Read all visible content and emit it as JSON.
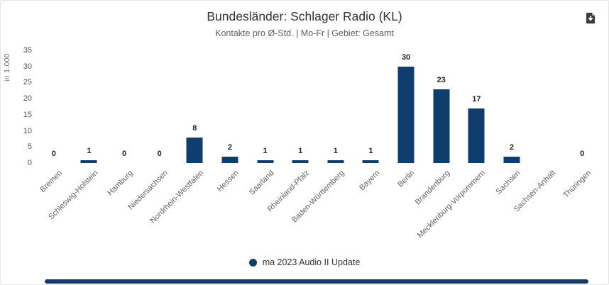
{
  "header": {
    "title": "Bundesländer: Schlager Radio (KL)",
    "subtitle": "Kontakte pro Ø-Std. | Mo-Fr | Gebiet: Gesamt"
  },
  "toolbar": {
    "export_icon": "download-document"
  },
  "chart_data": {
    "type": "bar",
    "title": "Bundesländer: Schlager Radio (KL)",
    "subtitle": "Kontakte pro Ø-Std. | Mo-Fr | Gebiet: Gesamt",
    "categories": [
      "Bremen",
      "Schleswig-Holstein",
      "Hamburg",
      "Niedersachsen",
      "Nordrhein-Westfalen",
      "Hessen",
      "Saarland",
      "Rheinland-Pfalz",
      "Baden-Württemberg",
      "Bayern",
      "Berlin",
      "Brandenburg",
      "Mecklenburg-Vorpommern",
      "Sachsen",
      "Sachsen-Anhalt",
      "Thüringen"
    ],
    "series": [
      {
        "name": "ma 2023 Audio II Update",
        "values": [
          0,
          1,
          0,
          0,
          8,
          2,
          1,
          1,
          1,
          1,
          30,
          23,
          17,
          2,
          null,
          0
        ]
      }
    ],
    "xlabel": "",
    "ylabel": "in 1.000",
    "ylim": [
      0,
      35
    ],
    "yticks": [
      0,
      5,
      10,
      15,
      20,
      25,
      30,
      35
    ],
    "grid": false,
    "legend_position": "bottom",
    "bar_color": "#0e3d6e",
    "data_labels": true
  },
  "legend": {
    "label": "ma 2023 Audio II Update",
    "marker_color": "#0e3d6e"
  },
  "scrollbar": {
    "color": "#0e3d6e"
  }
}
